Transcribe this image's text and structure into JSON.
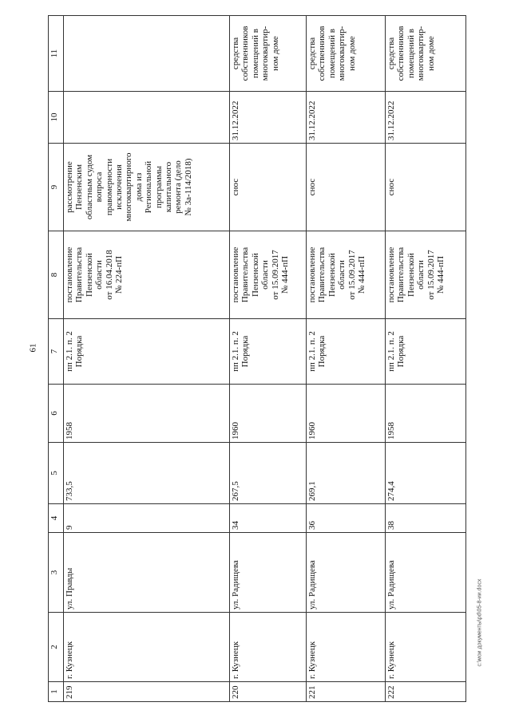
{
  "page_number": "61",
  "footer_path": "c:\\мои документы\\pd\\05-8-ии.docx",
  "header": [
    "1",
    "2",
    "3",
    "4",
    "5",
    "6",
    "7",
    "8",
    "9",
    "10",
    "11"
  ],
  "rows": [
    {
      "c1": "219",
      "c2": "г. Кузнецк",
      "c3": "ул. Правды",
      "c4": "9",
      "c5": "733,5",
      "c6": "1958",
      "c7": [
        "пп 2.1. п. 2",
        "Порядка"
      ],
      "c8": [
        "постановление",
        "Правительства",
        "Пензенской",
        "области",
        "от 16.04.2018",
        "№ 224-пП"
      ],
      "c9": [
        "рассмотрение",
        "Пензенским",
        "областным судом",
        "вопроса",
        "правомерности",
        "исключения",
        "многоквартирного",
        "дома из",
        "Региональной",
        "программы",
        "капитального",
        "ремонта (дело",
        "№ 3а-114/2018)"
      ],
      "c10": "",
      "c11": []
    },
    {
      "c1": "220",
      "c2": "г. Кузнецк",
      "c3": "ул. Радищева",
      "c4": "34",
      "c5": "267,5",
      "c6": "1960",
      "c7": [
        "пп 2.1. п. 2",
        "Порядка"
      ],
      "c8": [
        "постановление",
        "Правительства",
        "Пензенской",
        "области",
        "от 15.09.2017",
        "№ 444-пП"
      ],
      "c9": [
        "снос"
      ],
      "c10": "31.12.2022",
      "c11": [
        "средства",
        "собственников",
        "помещений в",
        "многоквартир-",
        "ном доме"
      ]
    },
    {
      "c1": "221",
      "c2": "г. Кузнецк",
      "c3": "ул. Радищева",
      "c4": "36",
      "c5": "269,1",
      "c6": "1960",
      "c7": [
        "пп 2.1. п. 2",
        "Порядка"
      ],
      "c8": [
        "постановление",
        "Правительства",
        "Пензенской",
        "области",
        "от 15.09.2017",
        "№ 444-пП"
      ],
      "c9": [
        "снос"
      ],
      "c10": "31.12.2022",
      "c11": [
        "средства",
        "собственников",
        "помещений в",
        "многоквартир-",
        "ном доме"
      ]
    },
    {
      "c1": "222",
      "c2": "г. Кузнецк",
      "c3": "ул. Радищева",
      "c4": "38",
      "c5": "274,4",
      "c6": "1958",
      "c7": [
        "пп 2.1. п. 2",
        "Порядка"
      ],
      "c8": [
        "постановление",
        "Правительства",
        "Пензенской",
        "области",
        "от 15.09.2017",
        "№ 444-пП"
      ],
      "c9": [
        "снос"
      ],
      "c10": "31.12.2022",
      "c11": [
        "средства",
        "собственников",
        "помещений в",
        "многоквартир-",
        "ном доме"
      ]
    }
  ]
}
